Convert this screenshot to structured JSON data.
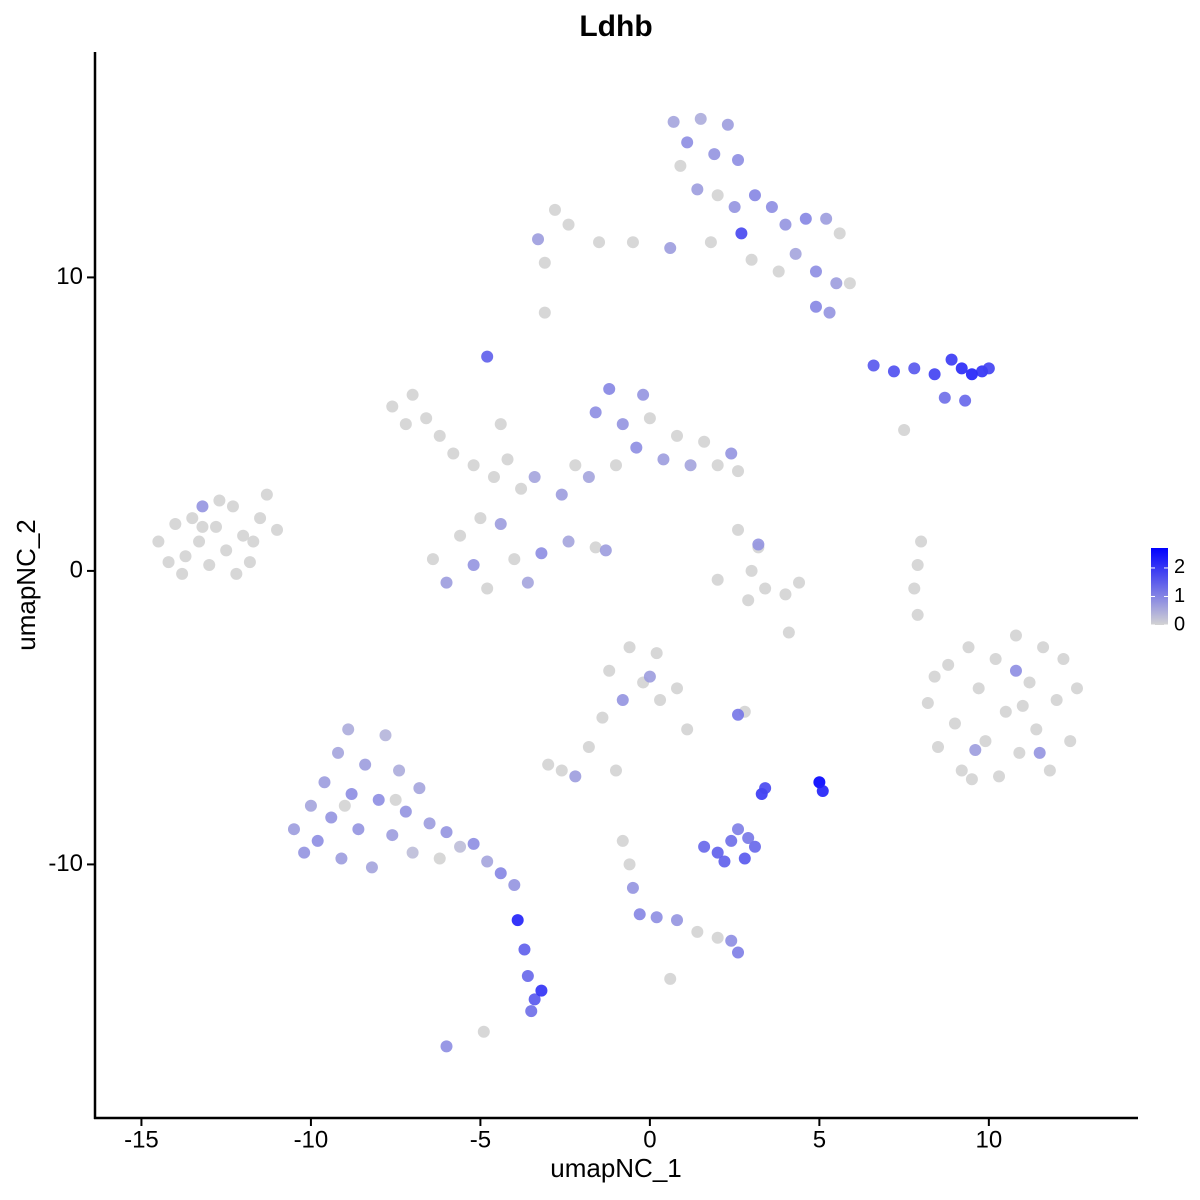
{
  "chart_data": {
    "type": "scatter",
    "title": "Ldhb",
    "x_label": "umapNC_1",
    "y_label": "umapNC_2",
    "xlim": [
      -16.37,
      14.4
    ],
    "ylim": [
      -18.64,
      17.68
    ],
    "xticks": [
      -15,
      -10,
      -5,
      0,
      5,
      10
    ],
    "yticks": [
      -10,
      0,
      10
    ],
    "color_low": "#d3d3d3",
    "color_high": "#0000ff",
    "colorbar": {
      "range": [
        0,
        2.7
      ],
      "ticks": [
        0,
        1,
        2
      ]
    },
    "x": [
      -14.5,
      -14.2,
      -14.0,
      -13.7,
      -13.5,
      -13.3,
      -13.0,
      -12.8,
      -12.5,
      -12.3,
      -12.0,
      -11.8,
      -11.5,
      -11.3,
      -11.0,
      -12.2,
      -13.8,
      -12.7,
      -13.2,
      -11.7,
      -13.2,
      8.2,
      8.5,
      8.8,
      9.0,
      9.2,
      9.4,
      9.7,
      9.9,
      10.2,
      10.3,
      10.5,
      10.8,
      10.9,
      11.2,
      11.4,
      11.6,
      11.8,
      12.0,
      12.2,
      12.4,
      12.6,
      11.0,
      9.5,
      8.4,
      10.8,
      11.5,
      9.6,
      -10.5,
      -10.2,
      -10.0,
      -9.8,
      -9.6,
      -9.4,
      -9.2,
      -9.1,
      -8.9,
      -8.8,
      -8.6,
      -8.4,
      -8.2,
      -8.0,
      -7.8,
      -7.6,
      -7.4,
      -7.2,
      -7.0,
      -6.8,
      -6.5,
      -6.0,
      -5.6,
      -5.2,
      -4.8,
      -4.4,
      -4.0,
      -3.9,
      -3.7,
      -3.6,
      -3.4,
      -3.2,
      -3.5,
      -6.0,
      -9.0,
      -7.5,
      -6.2,
      0.7,
      1.1,
      1.5,
      1.9,
      2.3,
      2.6,
      0.9,
      1.4,
      2.0,
      2.5,
      2.7,
      3.1,
      3.6,
      4.0,
      4.6,
      5.2,
      5.6,
      4.3,
      4.9,
      5.5,
      5.9,
      4.9,
      5.3,
      3.8,
      3.0,
      1.8,
      0.6,
      -0.5,
      -1.5,
      -2.4,
      -3.3,
      -2.8,
      -3.1,
      -3.1,
      -7.6,
      -7.0,
      -6.6,
      -6.2,
      -5.8,
      -7.2,
      -5.2,
      -4.6,
      -4.2,
      -3.8,
      -3.4,
      -4.8,
      -4.4,
      -2.6,
      -2.2,
      -1.6,
      -1.2,
      -0.8,
      -0.4,
      -1.0,
      0.0,
      0.4,
      0.8,
      1.2,
      1.6,
      2.0,
      2.4,
      2.6,
      -0.2,
      -1.8,
      -6.4,
      -6.0,
      -5.6,
      -5.2,
      -4.8,
      -4.4,
      -4.0,
      -3.6,
      -3.2,
      -5.0,
      -2.4,
      -1.6,
      -1.3,
      6.6,
      7.2,
      7.8,
      8.4,
      8.9,
      9.2,
      9.5,
      9.8,
      10.0,
      8.7,
      7.5,
      9.3,
      2.6,
      3.2,
      3.0,
      3.4,
      4.0,
      4.4,
      3.2,
      2.0,
      2.9,
      4.1,
      8.0,
      7.9,
      7.8,
      7.9,
      -1.2,
      -0.6,
      -0.2,
      0.3,
      0.8,
      1.1,
      -0.8,
      0.2,
      -1.4,
      -1.8,
      -2.6,
      -3.0,
      -2.2,
      -1.0,
      0.0,
      2.8,
      2.6,
      1.6,
      2.0,
      2.4,
      2.8,
      3.1,
      2.6,
      2.9,
      2.2,
      5.0,
      5.1,
      3.3,
      3.4,
      -0.8,
      -0.6,
      -0.5,
      -0.3,
      0.2,
      0.8,
      1.4,
      2.0,
      2.4,
      2.6,
      0.6,
      -4.9
    ],
    "y": [
      1.0,
      0.3,
      1.6,
      0.5,
      1.8,
      1.0,
      0.2,
      1.5,
      0.7,
      2.2,
      1.2,
      0.3,
      1.8,
      2.6,
      1.4,
      -0.1,
      -0.1,
      2.4,
      1.5,
      1.0,
      2.2,
      -4.5,
      -6.0,
      -3.2,
      -5.2,
      -6.8,
      -2.6,
      -4.0,
      -5.8,
      -3.0,
      -7.0,
      -4.8,
      -2.2,
      -6.2,
      -3.8,
      -5.4,
      -2.6,
      -6.8,
      -4.4,
      -3.0,
      -5.8,
      -4.0,
      -4.6,
      -7.1,
      -3.6,
      -3.4,
      -6.2,
      -6.1,
      -8.8,
      -9.6,
      -8.0,
      -9.2,
      -7.2,
      -8.4,
      -6.2,
      -9.8,
      -5.4,
      -7.6,
      -8.8,
      -6.6,
      -10.1,
      -7.8,
      -5.6,
      -9.0,
      -6.8,
      -8.2,
      -9.6,
      -7.4,
      -8.6,
      -8.9,
      -9.4,
      -9.3,
      -9.9,
      -10.3,
      -10.7,
      -11.9,
      -12.9,
      -13.8,
      -14.6,
      -14.3,
      -15.0,
      -16.2,
      -8.0,
      -7.8,
      -9.8,
      15.3,
      14.6,
      15.4,
      14.2,
      15.2,
      14.0,
      13.8,
      13.0,
      12.8,
      12.4,
      11.5,
      12.8,
      12.4,
      11.8,
      12.0,
      12.0,
      11.5,
      10.8,
      10.2,
      9.8,
      9.8,
      9.0,
      8.8,
      10.2,
      10.6,
      11.2,
      11.0,
      11.2,
      11.2,
      11.8,
      11.3,
      12.3,
      10.5,
      8.8,
      5.6,
      6.0,
      5.2,
      4.6,
      4.0,
      5.0,
      3.6,
      3.2,
      3.8,
      2.8,
      3.2,
      7.3,
      5.0,
      2.6,
      3.6,
      5.4,
      6.2,
      5.0,
      4.2,
      3.6,
      5.2,
      3.8,
      4.6,
      3.6,
      4.4,
      3.6,
      4.0,
      3.4,
      6.0,
      3.2,
      0.4,
      -0.4,
      1.2,
      0.2,
      -0.6,
      1.6,
      0.4,
      -0.4,
      0.6,
      1.8,
      1.0,
      0.8,
      0.7,
      7.0,
      6.8,
      6.9,
      6.7,
      7.2,
      6.9,
      6.7,
      6.8,
      6.9,
      5.9,
      4.8,
      5.8,
      1.4,
      0.8,
      0.0,
      -0.6,
      -0.8,
      -0.4,
      0.9,
      -0.3,
      -1.0,
      -2.1,
      1.0,
      0.2,
      -0.6,
      -1.5,
      -3.4,
      -2.6,
      -3.8,
      -4.4,
      -4.0,
      -5.4,
      -4.4,
      -2.8,
      -5.0,
      -6.0,
      -6.8,
      -6.6,
      -7.0,
      -6.8,
      -3.6,
      -4.8,
      -4.9,
      -9.4,
      -9.6,
      -9.2,
      -9.8,
      -9.4,
      -8.8,
      -9.1,
      -9.9,
      -7.2,
      -7.5,
      -7.6,
      -7.4,
      -9.2,
      -10.0,
      -10.8,
      -11.7,
      -11.8,
      -11.9,
      -12.3,
      -12.5,
      -12.6,
      -13.0,
      -13.9,
      -15.7
    ],
    "values": [
      0,
      0,
      0,
      0,
      0,
      0,
      0,
      0,
      0,
      0,
      0,
      0,
      0,
      0,
      0,
      0,
      0,
      0,
      0,
      0,
      0.8,
      0,
      0,
      0,
      0,
      0,
      0,
      0,
      0,
      0,
      0,
      0,
      0,
      0,
      0,
      0,
      0,
      0,
      0,
      0,
      0,
      0,
      0,
      0,
      0,
      0.9,
      0.8,
      0.7,
      0.7,
      0.8,
      0.6,
      0.9,
      0.7,
      0.8,
      0.6,
      0.7,
      0.5,
      0.9,
      0.8,
      0.7,
      0.6,
      0.9,
      0.4,
      0.7,
      0.5,
      0.8,
      0.3,
      0.6,
      0.7,
      0.8,
      0.3,
      0.9,
      0.6,
      1.0,
      0.8,
      2.3,
      1.5,
      1.4,
      1.6,
      2.1,
      1.3,
      0.9,
      0,
      0,
      0,
      0.6,
      0.9,
      0.5,
      0.8,
      0.7,
      0.9,
      0,
      0.7,
      0,
      0.8,
      1.8,
      1.0,
      0.9,
      0.8,
      1.0,
      0.7,
      0,
      0.6,
      0.9,
      0.7,
      0,
      1.0,
      0.8,
      0,
      0,
      0,
      0.7,
      0,
      0,
      0,
      0.7,
      0,
      0,
      0,
      0,
      0,
      0,
      0,
      0,
      0,
      0,
      0,
      0,
      0,
      0.6,
      1.5,
      0,
      0.7,
      0,
      0.9,
      1.0,
      0.8,
      0.9,
      0,
      0,
      0.7,
      0,
      0.6,
      0,
      0,
      0.8,
      0,
      0.8,
      0.6,
      0,
      0.7,
      0,
      0.8,
      0,
      0.7,
      0,
      0.6,
      0.9,
      0,
      0.6,
      0,
      0.7,
      1.6,
      1.7,
      1.6,
      1.9,
      2.0,
      2.2,
      2.3,
      2.1,
      1.9,
      1.3,
      0,
      1.4,
      0,
      0,
      0,
      0,
      0,
      0,
      0.8,
      0,
      0,
      0,
      0,
      0,
      0,
      0,
      0,
      0,
      0,
      0,
      0,
      0,
      0.8,
      0,
      0,
      0,
      0,
      0,
      0.7,
      0,
      0.7,
      0,
      1.2,
      1.4,
      1.5,
      1.3,
      1.6,
      1.4,
      1.1,
      1.2,
      1.5,
      2.7,
      2.3,
      2.0,
      1.8,
      0,
      0,
      0.8,
      1.0,
      0.9,
      0.8,
      0,
      0,
      0.9,
      1.1,
      0,
      0
    ]
  }
}
